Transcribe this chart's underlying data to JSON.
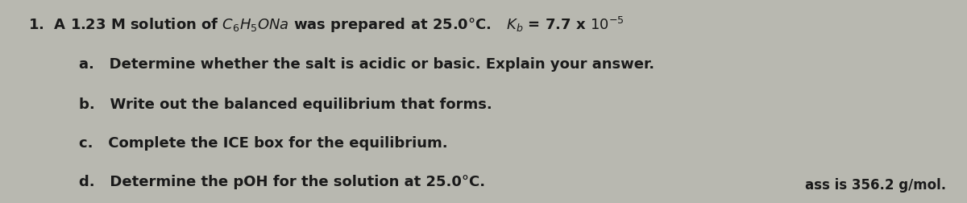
{
  "background_color": "#b8b8b0",
  "text_color": "#1a1a1a",
  "title_line": "1.  A 1.23 M solution of C₆H₅ONa was prepared at 25.0°C.   Kᵇ = 7.7 x 10⁻⁵",
  "line_a": "a.   Determine whether the salt is acidic or basic. Explain your answer.",
  "line_b": "b.   Write out the balanced equilibrium that forms.",
  "line_c": "c.   Complete the ICE box for the equilibrium.",
  "line_d": "d.   Determine the pOH for the solution at 25.0°C.",
  "line_bottom": "ass is 356.2 g/mol.",
  "font_size_main": 13,
  "font_size_bottom": 12
}
